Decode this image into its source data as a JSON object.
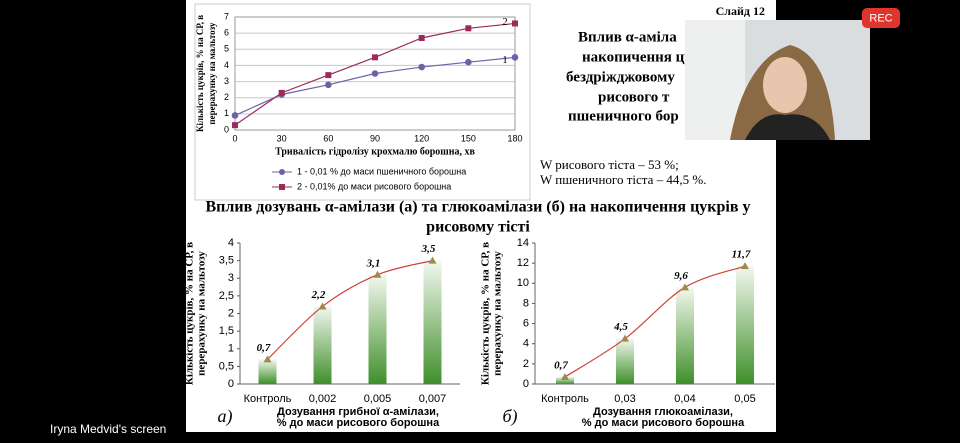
{
  "chart_data": [
    {
      "type": "line",
      "xlabel": "Тривалість гідролізу крохмалю борошна, хв",
      "ylabel": [
        "Кількість цукрів, % на СР, в",
        "перерахунку на мальтозу"
      ],
      "x": [
        0,
        30,
        60,
        90,
        120,
        150,
        180
      ],
      "xlim": [
        0,
        180
      ],
      "xticks": [
        0,
        30,
        60,
        90,
        120,
        150,
        180
      ],
      "ylim": [
        0,
        7
      ],
      "yticks": [
        0,
        1,
        2,
        3,
        4,
        5,
        6,
        7
      ],
      "grid": true,
      "series": [
        {
          "name": "1 - 0,01 % до маси пшеничного борошна",
          "end_label": "1",
          "color": "#6b63a8",
          "marker": "circle",
          "values": [
            0.9,
            2.2,
            2.8,
            3.5,
            3.9,
            4.2,
            4.5
          ]
        },
        {
          "name": "2 - 0,01% до маси рисового борошна",
          "end_label": "2",
          "color": "#9c2a5a",
          "marker": "square",
          "values": [
            0.3,
            2.3,
            3.4,
            4.5,
            5.7,
            6.3,
            6.6
          ]
        }
      ]
    },
    {
      "type": "bar",
      "panel": "а)",
      "xlabel": [
        "Дозування  грибної α-амілази,",
        "% до маси рисового борошна"
      ],
      "ylabel": [
        "Кількість цукрів, % на СР, в",
        "перерахунку на мальтозу"
      ],
      "categories": [
        "Контроль",
        "0,002",
        "0,005",
        "0,007"
      ],
      "values": [
        0.7,
        2.2,
        3.1,
        3.5
      ],
      "value_labels": [
        "0,7",
        "2,2",
        "3,1",
        "3,5"
      ],
      "color": "#3f8f2a",
      "trend_color": "#d0423a",
      "ylim": [
        0,
        4
      ],
      "yticks": [
        0,
        {
          "value": 0.5,
          "label": "0,5"
        },
        1,
        {
          "value": 1.5,
          "label": "1,5"
        },
        2,
        {
          "value": 2.5,
          "label": "2,5"
        },
        3,
        {
          "value": 3.5,
          "label": "3,5"
        },
        4
      ]
    },
    {
      "type": "bar",
      "panel": "б)",
      "xlabel": [
        "Дозування  глюкоамілази,",
        "% до маси рисового борошна"
      ],
      "ylabel": [
        "Кількість цукрів, % на СР, в",
        "перерахунку на мальтозу"
      ],
      "categories": [
        "Контроль",
        "0,03",
        "0,04",
        "0,05"
      ],
      "values": [
        0.7,
        4.5,
        9.6,
        11.7
      ],
      "value_labels": [
        "0,7",
        "4,5",
        "9,6",
        "11,7"
      ],
      "color": "#3f8f2a",
      "trend_color": "#d0423a",
      "ylim": [
        0,
        14
      ],
      "yticks": [
        0,
        2,
        4,
        6,
        8,
        10,
        12,
        14
      ]
    }
  ],
  "slide": {
    "number": "Слайд 12",
    "heading": [
      "Вплив α-аміла",
      "накопичення цу",
      "бездріжджовому",
      "рисового т",
      "пшеничного бор"
    ],
    "notes": [
      "W рисового тіста – 53 %;",
      "W пшеничного тіста – 44,5 %."
    ],
    "title": [
      "Вплив дозувань α-амілази (а) та глюкоамілази (б) на накопичення цукрів у",
      "рисовому тісті"
    ]
  },
  "call": {
    "rec": "REC",
    "screen_name": "Iryna Medvid's screen"
  }
}
